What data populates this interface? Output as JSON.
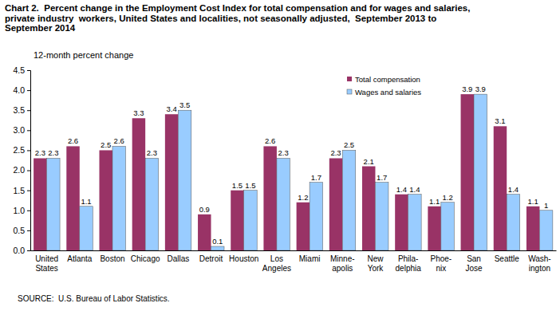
{
  "chart_data": {
    "type": "bar",
    "title": "Chart 2.  Percent change in the Employment Cost Index for total compensation and for wages and salaries,\nprivate industry  workers, United States and localities, not seasonally adjusted,  September 2013 to\nSeptember 2014",
    "y_label": "12-month percent change",
    "source": "SOURCE:  U.S. Bureau of Labor Statistics.",
    "categories": [
      "United\nStates",
      "Atlanta",
      "Boston",
      "Chicago",
      "Dallas",
      "Detroit",
      "Houston",
      "Los\nAngeles",
      "Miami",
      "Minne-\napolis",
      "New\nYork",
      "Phila-\ndelphia",
      "Phoe-\nnix",
      "San\nJose",
      "Seattle",
      "Wash-\nington"
    ],
    "series": [
      {
        "name": "Total compensation",
        "color": "#993366",
        "values": [
          2.3,
          2.6,
          2.5,
          3.3,
          3.4,
          0.9,
          1.5,
          2.6,
          1.2,
          2.3,
          2.1,
          1.4,
          1.1,
          3.9,
          3.1,
          1.1
        ]
      },
      {
        "name": "Wages and salaries",
        "color": "#99ccff",
        "values": [
          2.3,
          1.1,
          2.6,
          2.3,
          3.5,
          0.1,
          1.5,
          2.3,
          1.7,
          2.5,
          1.7,
          1.4,
          1.2,
          3.9,
          1.4,
          1.0
        ]
      }
    ],
    "ylim": [
      0,
      4.5
    ],
    "yticks": [
      {
        "value": 0,
        "label": "0.0"
      },
      0.5,
      {
        "value": 1,
        "label": "1.0"
      },
      1.5,
      {
        "value": 2,
        "label": "2.0"
      },
      2.5,
      {
        "value": 3,
        "label": "3.0"
      },
      3.5,
      {
        "value": 4,
        "label": "4.0"
      },
      4.5
    ],
    "grid": false,
    "legend": "upper right",
    "data_labels": true
  }
}
